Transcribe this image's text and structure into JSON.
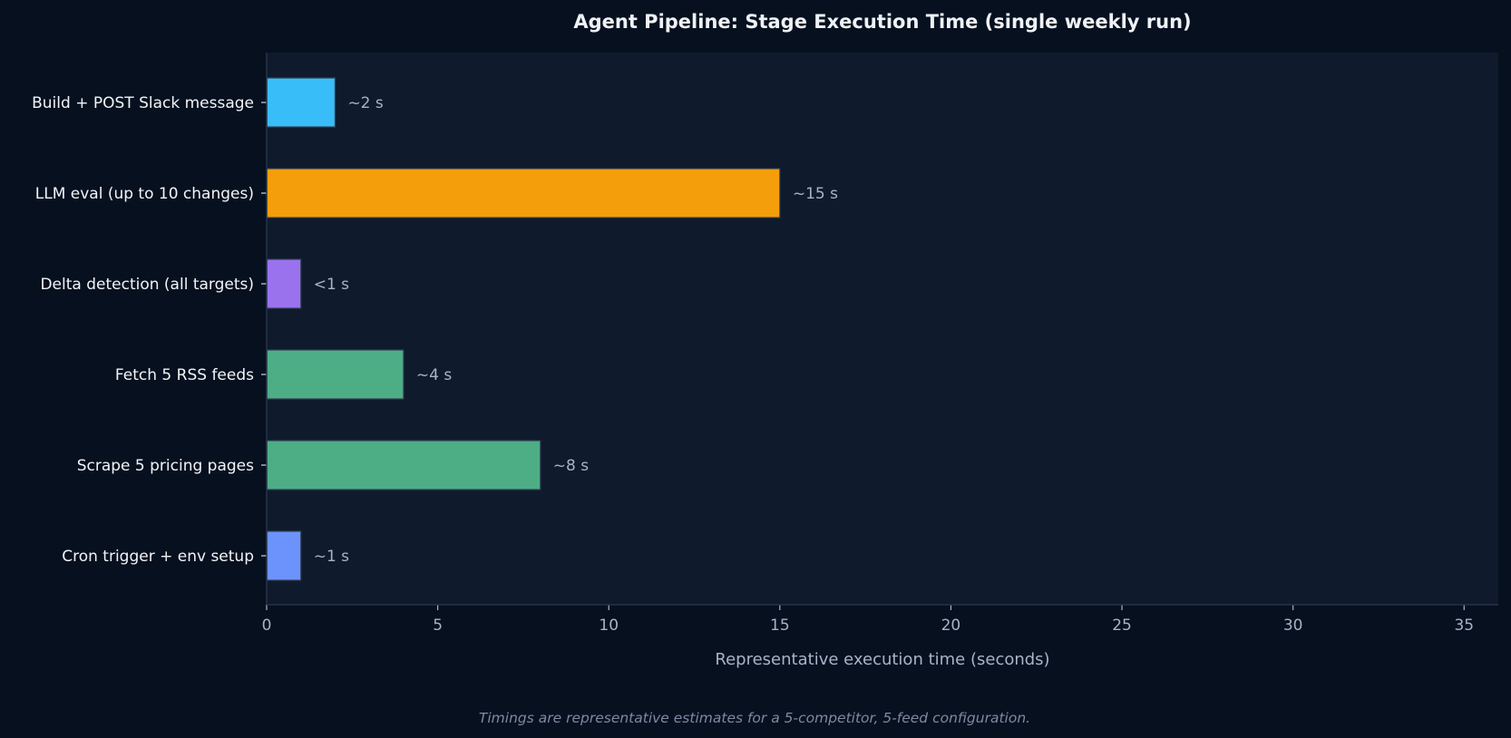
{
  "colors": {
    "page_background": "#07101e",
    "plot_background": "#0f1a2c",
    "axis": "#25324a",
    "bar_edge": "#334155"
  },
  "chart_data": {
    "type": "bar",
    "orientation": "horizontal",
    "title": "Agent Pipeline: Stage Execution Time (single weekly run)",
    "xlabel": "Representative execution time (seconds)",
    "ylabel": "",
    "xlim": [
      0,
      36
    ],
    "xticks": [
      0,
      5,
      10,
      15,
      20,
      25,
      30,
      35
    ],
    "grid": false,
    "legend": "none",
    "categories": [
      "Build + POST Slack message",
      "LLM eval (up to 10 changes)",
      "Delta detection (all targets)",
      "Fetch 5 RSS feeds",
      "Scrape 5 pricing pages",
      "Cron trigger + env setup"
    ],
    "values": [
      2,
      15,
      1,
      4,
      8,
      1
    ],
    "value_labels": [
      "~2 s",
      "~15 s",
      "<1 s",
      "~4 s",
      "~8 s",
      "~1 s"
    ],
    "bar_colors": [
      "#38bdf8",
      "#f59e0b",
      "#9a72ee",
      "#4dae86",
      "#4dae86",
      "#6c93fc"
    ],
    "footnote": "Timings are representative estimates for a 5-competitor, 5-feed configuration."
  }
}
